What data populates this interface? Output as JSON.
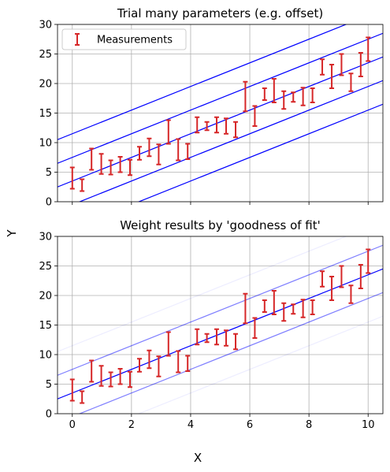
{
  "figure": {
    "xlabel": "X",
    "ylabel": "Y"
  },
  "chart_data": [
    {
      "type": "line",
      "title": "Trial many parameters (e.g. offset)",
      "xlim": [
        -0.5,
        10.5
      ],
      "ylim": [
        0,
        30
      ],
      "xticks": [
        0,
        2,
        4,
        6,
        8,
        10
      ],
      "yticks": [
        0,
        5,
        10,
        15,
        20,
        25,
        30
      ],
      "grid": true,
      "legend": {
        "position": "top-left",
        "entries": [
          {
            "label": "Measurements",
            "color": "#d62728",
            "marker": "errorbar"
          }
        ]
      },
      "slope": 2.0,
      "trial_offsets": [
        11.5,
        7.5,
        3.5,
        -0.5,
        -4.5
      ],
      "trial_color": "#0000ff",
      "trial_alphas": [
        1,
        1,
        1,
        1,
        1
      ]
    },
    {
      "type": "line",
      "title": "Weight results by 'goodness of fit'",
      "xlim": [
        -0.5,
        10.5
      ],
      "ylim": [
        0,
        30
      ],
      "xticks": [
        0,
        2,
        4,
        6,
        8,
        10
      ],
      "yticks": [
        0,
        5,
        10,
        15,
        20,
        25,
        30
      ],
      "grid": true,
      "slope": 2.0,
      "trial_offsets": [
        11.5,
        7.5,
        3.5,
        -0.5,
        -4.5
      ],
      "trial_color": "#0000ff",
      "trial_alphas": [
        0.07,
        0.5,
        1,
        0.5,
        0.07
      ]
    }
  ],
  "measurements": {
    "name": "Measurements",
    "color": "#d62728",
    "points": [
      {
        "x": 0.0,
        "y": 4.0,
        "err": 1.8
      },
      {
        "x": 0.33,
        "y": 2.8,
        "err": 1.0
      },
      {
        "x": 0.65,
        "y": 7.2,
        "err": 1.8
      },
      {
        "x": 0.98,
        "y": 6.4,
        "err": 1.7
      },
      {
        "x": 1.3,
        "y": 5.8,
        "err": 1.2
      },
      {
        "x": 1.62,
        "y": 6.3,
        "err": 1.3
      },
      {
        "x": 1.95,
        "y": 5.8,
        "err": 1.3
      },
      {
        "x": 2.27,
        "y": 8.2,
        "err": 1.1
      },
      {
        "x": 2.6,
        "y": 9.2,
        "err": 1.5
      },
      {
        "x": 2.92,
        "y": 8.0,
        "err": 1.7
      },
      {
        "x": 3.25,
        "y": 11.8,
        "err": 2.0
      },
      {
        "x": 3.58,
        "y": 8.8,
        "err": 1.8
      },
      {
        "x": 3.9,
        "y": 8.5,
        "err": 1.3
      },
      {
        "x": 4.22,
        "y": 13.0,
        "err": 1.3
      },
      {
        "x": 4.55,
        "y": 12.8,
        "err": 0.7
      },
      {
        "x": 4.88,
        "y": 13.0,
        "err": 1.3
      },
      {
        "x": 5.2,
        "y": 12.8,
        "err": 1.3
      },
      {
        "x": 5.52,
        "y": 12.2,
        "err": 1.3
      },
      {
        "x": 5.85,
        "y": 17.8,
        "err": 2.5
      },
      {
        "x": 6.17,
        "y": 14.5,
        "err": 1.7
      },
      {
        "x": 6.5,
        "y": 18.2,
        "err": 1.0
      },
      {
        "x": 6.82,
        "y": 18.8,
        "err": 2.0
      },
      {
        "x": 7.15,
        "y": 17.2,
        "err": 1.5
      },
      {
        "x": 7.47,
        "y": 17.7,
        "err": 0.8
      },
      {
        "x": 7.8,
        "y": 17.8,
        "err": 1.5
      },
      {
        "x": 8.12,
        "y": 18.0,
        "err": 1.2
      },
      {
        "x": 8.45,
        "y": 22.8,
        "err": 1.3
      },
      {
        "x": 8.77,
        "y": 21.2,
        "err": 2.0
      },
      {
        "x": 9.1,
        "y": 23.2,
        "err": 1.8
      },
      {
        "x": 9.42,
        "y": 20.2,
        "err": 1.5
      },
      {
        "x": 9.75,
        "y": 23.2,
        "err": 2.0
      },
      {
        "x": 10.0,
        "y": 25.8,
        "err": 2.0
      }
    ]
  }
}
